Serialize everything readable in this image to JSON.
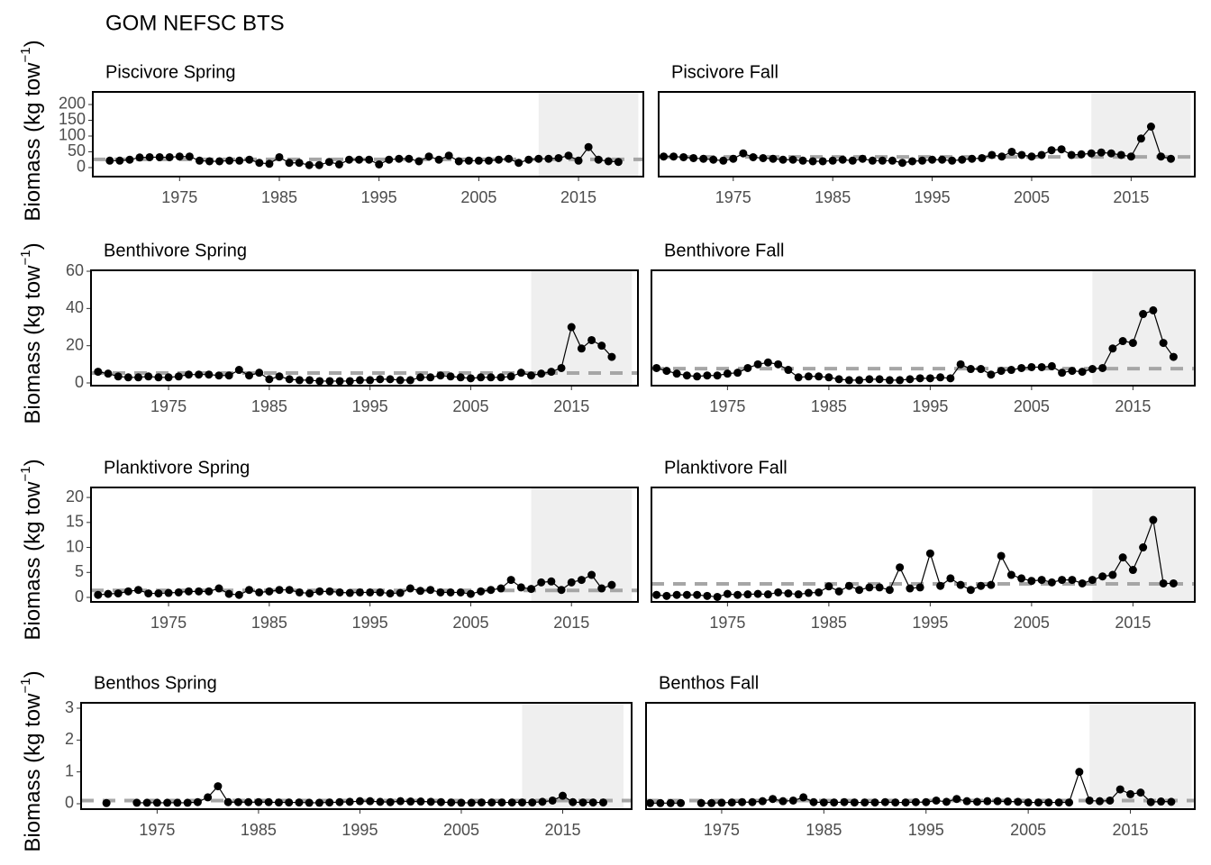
{
  "title": "GOM NEFSC BTS",
  "y_label": {
    "text": "Biomass (kg tow",
    "sup": "−1",
    "end": ")"
  },
  "chart_data": [
    {
      "type": "line",
      "title": "Piscivore Spring",
      "x": [
        1968,
        1969,
        1970,
        1971,
        1972,
        1973,
        1974,
        1975,
        1976,
        1977,
        1978,
        1979,
        1980,
        1981,
        1982,
        1983,
        1984,
        1985,
        1986,
        1987,
        1988,
        1989,
        1990,
        1991,
        1992,
        1993,
        1994,
        1995,
        1996,
        1997,
        1998,
        1999,
        2000,
        2001,
        2002,
        2003,
        2004,
        2005,
        2006,
        2007,
        2008,
        2009,
        2010,
        2011,
        2012,
        2013,
        2014,
        2015,
        2016,
        2017,
        2018,
        2019
      ],
      "values": [
        22,
        22,
        25,
        32,
        33,
        33,
        33,
        35,
        35,
        22,
        20,
        20,
        22,
        22,
        25,
        15,
        12,
        33,
        15,
        15,
        8,
        8,
        18,
        10,
        25,
        25,
        25,
        10,
        25,
        28,
        28,
        20,
        35,
        25,
        38,
        20,
        22,
        22,
        22,
        25,
        28,
        15,
        25,
        28,
        28,
        30,
        38,
        22,
        65,
        25,
        20,
        18
      ],
      "color": "#000000",
      "xlim": [
        1966.3,
        2021.5
      ],
      "ylim": [
        -28.6,
        240
      ],
      "xticks": [
        1975,
        1985,
        1995,
        2005,
        2015
      ],
      "yticks": [
        0,
        50,
        100,
        150,
        200
      ],
      "hline": 26,
      "hline_color": "#a6a6a6",
      "highlight": [
        2011,
        2021
      ],
      "highlight_color": "#efefef"
    },
    {
      "type": "line",
      "title": "Piscivore Fall",
      "x": [
        1968,
        1969,
        1970,
        1971,
        1972,
        1973,
        1974,
        1975,
        1976,
        1977,
        1978,
        1979,
        1980,
        1981,
        1982,
        1983,
        1984,
        1985,
        1986,
        1987,
        1988,
        1989,
        1990,
        1991,
        1992,
        1993,
        1994,
        1995,
        1996,
        1997,
        1998,
        1999,
        2000,
        2001,
        2002,
        2003,
        2004,
        2005,
        2006,
        2007,
        2008,
        2009,
        2010,
        2011,
        2012,
        2013,
        2014,
        2015,
        2016,
        2017,
        2018,
        2019
      ],
      "values": [
        35,
        35,
        33,
        30,
        28,
        25,
        22,
        28,
        45,
        33,
        30,
        28,
        25,
        25,
        22,
        20,
        20,
        22,
        25,
        22,
        28,
        22,
        22,
        22,
        15,
        20,
        22,
        25,
        25,
        22,
        25,
        28,
        30,
        40,
        35,
        50,
        40,
        35,
        40,
        55,
        58,
        40,
        42,
        45,
        48,
        45,
        40,
        35,
        92,
        130,
        35,
        28
      ],
      "color": "#000000",
      "xlim": [
        1967.5,
        2021.4
      ],
      "ylim": [
        -28.6,
        240
      ],
      "xticks": [
        1975,
        1985,
        1995,
        2005,
        2015
      ],
      "hline": 34,
      "hline_color": "#a6a6a6",
      "highlight": [
        2011,
        2021
      ],
      "highlight_color": "#efefef"
    },
    {
      "type": "line",
      "title": "Benthivore Spring",
      "x": [
        1968,
        1969,
        1970,
        1971,
        1972,
        1973,
        1974,
        1975,
        1976,
        1977,
        1978,
        1979,
        1980,
        1981,
        1982,
        1983,
        1984,
        1985,
        1986,
        1987,
        1988,
        1989,
        1990,
        1991,
        1992,
        1993,
        1994,
        1995,
        1996,
        1997,
        1998,
        1999,
        2000,
        2001,
        2002,
        2003,
        2004,
        2005,
        2006,
        2007,
        2008,
        2009,
        2010,
        2011,
        2012,
        2013,
        2014,
        2015,
        2016,
        2017,
        2018,
        2019
      ],
      "values": [
        6,
        5,
        3.5,
        3,
        3,
        3.5,
        3,
        3,
        3.5,
        4.5,
        4.5,
        4.5,
        4,
        4,
        7,
        4,
        5.5,
        2,
        3.5,
        2,
        1.5,
        1.5,
        1,
        1,
        1,
        1,
        1.5,
        1.5,
        2,
        2,
        1.5,
        1.5,
        3,
        3,
        4,
        3.5,
        3,
        2.5,
        3,
        3,
        3,
        3.5,
        5.5,
        4,
        5,
        6,
        8,
        30,
        18.5,
        23,
        20,
        14
      ],
      "color": "#000000",
      "xlim": [
        1967.3,
        2021.6
      ],
      "ylim": [
        -1.45,
        60.5
      ],
      "xticks": [
        1975,
        1985,
        1995,
        2005,
        2015
      ],
      "yticks": [
        0,
        20,
        40,
        60
      ],
      "hline": 5.3,
      "hline_color": "#a6a6a6",
      "highlight": [
        2011,
        2021
      ],
      "highlight_color": "#efefef"
    },
    {
      "type": "line",
      "title": "Benthivore Fall",
      "x": [
        1968,
        1969,
        1970,
        1971,
        1972,
        1973,
        1974,
        1975,
        1976,
        1977,
        1978,
        1979,
        1980,
        1981,
        1982,
        1983,
        1984,
        1985,
        1986,
        1987,
        1988,
        1989,
        1990,
        1991,
        1992,
        1993,
        1994,
        1995,
        1996,
        1997,
        1998,
        1999,
        2000,
        2001,
        2002,
        2003,
        2004,
        2005,
        2006,
        2007,
        2008,
        2009,
        2010,
        2011,
        2012,
        2013,
        2014,
        2015,
        2016,
        2017,
        2018,
        2019
      ],
      "values": [
        8,
        6.5,
        5,
        4,
        3.5,
        4,
        4,
        5,
        5.5,
        8,
        10,
        11,
        10,
        7,
        3,
        3.5,
        3.5,
        3,
        2,
        1.5,
        1.5,
        2,
        2,
        1.5,
        1.5,
        2,
        2.5,
        2.5,
        3,
        2.5,
        10,
        7.5,
        7.5,
        4.5,
        6.5,
        7,
        8,
        8.5,
        8.5,
        9,
        5.5,
        6.5,
        6,
        7.5,
        8,
        18.5,
        22.5,
        21.5,
        37,
        39,
        21.5,
        14
      ],
      "color": "#000000",
      "xlim": [
        1967.5,
        2021.1
      ],
      "ylim": [
        -1.45,
        60.5
      ],
      "xticks": [
        1975,
        1985,
        1995,
        2005,
        2015
      ],
      "hline": 7.7,
      "hline_color": "#a6a6a6",
      "highlight": [
        2011,
        2021
      ],
      "highlight_color": "#efefef"
    },
    {
      "type": "line",
      "title": "Planktivore Spring",
      "x": [
        1968,
        1969,
        1970,
        1971,
        1972,
        1973,
        1974,
        1975,
        1976,
        1977,
        1978,
        1979,
        1980,
        1981,
        1982,
        1983,
        1984,
        1985,
        1986,
        1987,
        1988,
        1989,
        1990,
        1991,
        1992,
        1993,
        1994,
        1995,
        1996,
        1997,
        1998,
        1999,
        2000,
        2001,
        2002,
        2003,
        2004,
        2005,
        2006,
        2007,
        2008,
        2009,
        2010,
        2011,
        2012,
        2013,
        2014,
        2015,
        2016,
        2017,
        2018,
        2019
      ],
      "values": [
        0.5,
        0.7,
        0.8,
        1.2,
        1.5,
        0.8,
        0.8,
        0.9,
        1,
        1.2,
        1.2,
        1.2,
        1.8,
        0.7,
        0.5,
        1.5,
        1,
        1.2,
        1.5,
        1.5,
        1,
        0.8,
        1.2,
        1.2,
        1,
        0.9,
        1,
        1,
        1,
        0.8,
        0.9,
        1.8,
        1.3,
        1.5,
        1,
        1,
        1,
        0.7,
        1.2,
        1.5,
        1.8,
        3.5,
        2,
        1.7,
        3,
        3.2,
        1.5,
        3,
        3.5,
        4.5,
        1.8,
        2.5
      ],
      "color": "#000000",
      "xlim": [
        1967.3,
        2021.6
      ],
      "ylim": [
        -0.9,
        22
      ],
      "xticks": [
        1975,
        1985,
        1995,
        2005,
        2015
      ],
      "yticks": [
        0,
        5,
        10,
        15,
        20
      ],
      "hline": 1.4,
      "hline_color": "#a6a6a6",
      "highlight": [
        2011,
        2021
      ],
      "highlight_color": "#efefef"
    },
    {
      "type": "line",
      "title": "Planktivore Fall",
      "x": [
        1968,
        1969,
        1970,
        1971,
        1972,
        1973,
        1974,
        1975,
        1976,
        1977,
        1978,
        1979,
        1980,
        1981,
        1982,
        1983,
        1984,
        1985,
        1986,
        1987,
        1988,
        1989,
        1990,
        1991,
        1992,
        1993,
        1994,
        1995,
        1996,
        1997,
        1998,
        1999,
        2000,
        2001,
        2002,
        2003,
        2004,
        2005,
        2006,
        2007,
        2008,
        2009,
        2010,
        2011,
        2012,
        2013,
        2014,
        2015,
        2016,
        2017,
        2018,
        2019
      ],
      "values": [
        0.5,
        0.3,
        0.5,
        0.5,
        0.5,
        0.3,
        0.1,
        0.7,
        0.5,
        0.6,
        0.7,
        0.6,
        1,
        0.8,
        0.6,
        0.9,
        1,
        2.2,
        1.2,
        2.3,
        1.5,
        2,
        2,
        1.5,
        6,
        1.8,
        2,
        8.8,
        2.3,
        3.8,
        2.5,
        1.5,
        2.3,
        2.5,
        8.3,
        4.5,
        3.8,
        3.3,
        3.5,
        3,
        3.5,
        3.5,
        2.8,
        3.5,
        4.2,
        4.5,
        8,
        5.5,
        10,
        15.5,
        2.8,
        2.8
      ],
      "color": "#000000",
      "xlim": [
        1967.5,
        2021.1
      ],
      "ylim": [
        -0.9,
        22
      ],
      "xticks": [
        1975,
        1985,
        1995,
        2005,
        2015
      ],
      "hline": 2.7,
      "hline_color": "#a6a6a6",
      "highlight": [
        2011,
        2021
      ],
      "highlight_color": "#efefef"
    },
    {
      "type": "line",
      "title": "Benthos Spring",
      "x": [
        1968,
        1969,
        1970,
        1971,
        1972,
        1973,
        1974,
        1975,
        1976,
        1977,
        1978,
        1979,
        1980,
        1981,
        1982,
        1983,
        1984,
        1985,
        1986,
        1987,
        1988,
        1989,
        1990,
        1991,
        1992,
        1993,
        1994,
        1995,
        1996,
        1997,
        1998,
        1999,
        2000,
        2001,
        2002,
        2003,
        2004,
        2005,
        2006,
        2007,
        2008,
        2009,
        2010,
        2011,
        2012,
        2013,
        2014,
        2015,
        2016,
        2017,
        2018,
        2019
      ],
      "values": [
        null,
        null,
        0.02,
        null,
        null,
        0.03,
        0.03,
        0.03,
        0.03,
        0.03,
        0.03,
        0.05,
        0.2,
        0.55,
        0.05,
        0.05,
        0.05,
        0.05,
        0.05,
        0.04,
        0.04,
        0.04,
        0.03,
        0.03,
        0.04,
        0.05,
        0.06,
        0.08,
        0.08,
        0.06,
        0.05,
        0.08,
        0.07,
        0.07,
        0.06,
        0.05,
        0.04,
        0.03,
        0.03,
        0.04,
        0.04,
        0.04,
        0.04,
        0.04,
        0.04,
        0.06,
        0.1,
        0.25,
        0.05,
        0.04,
        0.04,
        0.04
      ],
      "color": "#000000",
      "xlim": [
        1967.5,
        2021.8
      ],
      "ylim": [
        -0.17,
        3.17
      ],
      "xticks": [
        1975,
        1985,
        1995,
        2005,
        2015
      ],
      "yticks": [
        0,
        1,
        2,
        3
      ],
      "hline": 0.1,
      "hline_color": "#a6a6a6",
      "highlight": [
        2011,
        2021
      ],
      "highlight_color": "#efefef"
    },
    {
      "type": "line",
      "title": "Benthos Fall",
      "x": [
        1968,
        1969,
        1970,
        1971,
        1972,
        1973,
        1974,
        1975,
        1976,
        1977,
        1978,
        1979,
        1980,
        1981,
        1982,
        1983,
        1984,
        1985,
        1986,
        1987,
        1988,
        1989,
        1990,
        1991,
        1992,
        1993,
        1994,
        1995,
        1996,
        1997,
        1998,
        1999,
        2000,
        2001,
        2002,
        2003,
        2004,
        2005,
        2006,
        2007,
        2008,
        2009,
        2010,
        2011,
        2012,
        2013,
        2014,
        2015,
        2016,
        2017,
        2018,
        2019
      ],
      "values": [
        0.02,
        0.02,
        0.02,
        0.02,
        null,
        0.02,
        0.02,
        0.03,
        0.04,
        0.05,
        0.05,
        0.08,
        0.15,
        0.08,
        0.1,
        0.2,
        0.05,
        0.04,
        0.04,
        0.05,
        0.04,
        0.04,
        0.04,
        0.05,
        0.04,
        0.04,
        0.05,
        0.05,
        0.1,
        0.06,
        0.15,
        0.08,
        0.06,
        0.08,
        0.08,
        0.07,
        0.06,
        0.04,
        0.04,
        0.04,
        0.04,
        0.04,
        1.0,
        0.1,
        0.08,
        0.1,
        0.45,
        0.3,
        0.35,
        0.05,
        0.07,
        0.06
      ],
      "color": "#000000",
      "xlim": [
        1967.6,
        2021.3
      ],
      "ylim": [
        -0.17,
        3.17
      ],
      "xticks": [
        1975,
        1985,
        1995,
        2005,
        2015
      ],
      "hline": 0.1,
      "hline_color": "#a6a6a6",
      "highlight": [
        2011,
        2021
      ],
      "highlight_color": "#efefef"
    }
  ]
}
